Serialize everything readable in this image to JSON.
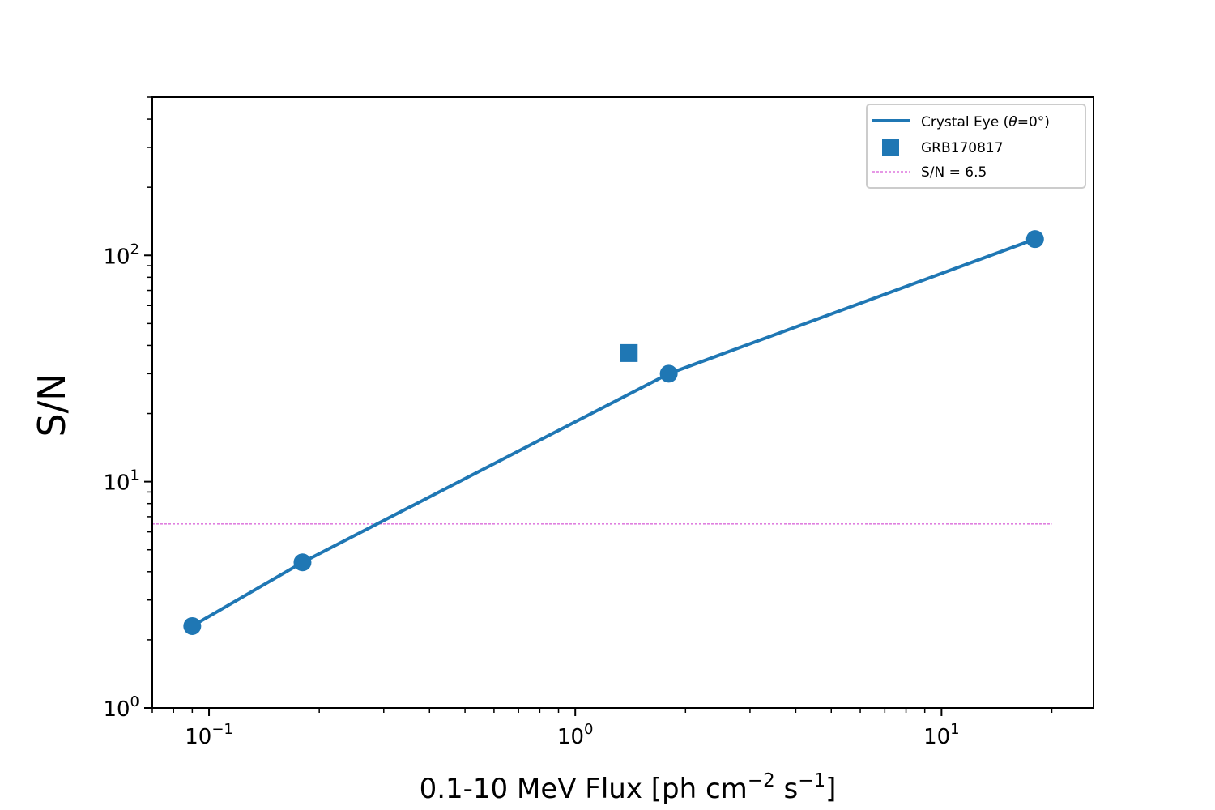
{
  "chart_data": {
    "type": "scatter",
    "x_scale": "log",
    "y_scale": "log",
    "xlabel": "0.1-10 MeV Flux [ph cm",
    "xlabel_exp1": "−2",
    "xlabel_mid": " s",
    "xlabel_exp2": "−1",
    "xlabel_end": "]",
    "ylabel": "S/N",
    "xlim": [
      0.07,
      26
    ],
    "ylim": [
      1,
      500
    ],
    "x_ticks": [
      {
        "value": 0.1,
        "base": "10",
        "exp": "−1"
      },
      {
        "value": 1,
        "base": "10",
        "exp": "0"
      },
      {
        "value": 10,
        "base": "10",
        "exp": "1"
      }
    ],
    "y_ticks": [
      {
        "value": 1,
        "base": "10",
        "exp": "0"
      },
      {
        "value": 10,
        "base": "10",
        "exp": "1"
      },
      {
        "value": 100,
        "base": "10",
        "exp": "2"
      }
    ],
    "series": [
      {
        "name": "Crystal Eye (θ=0°)",
        "style": "line-markers",
        "color": "#1f77b4",
        "x": [
          0.09,
          0.18,
          1.8,
          18
        ],
        "y": [
          2.3,
          4.4,
          30,
          118
        ]
      },
      {
        "name": "GRB170817",
        "style": "square",
        "color": "#1f77b4",
        "x": [
          1.4
        ],
        "y": [
          37
        ]
      },
      {
        "name": "S/N = 6.5",
        "style": "dashed-hline",
        "color": "#cc33cc",
        "y_value": 6.5,
        "x_range": [
          0.07,
          20
        ]
      }
    ],
    "legend": {
      "placement": "top-right",
      "items": [
        {
          "label_pre": "Crystal Eye (",
          "label_theta": "θ",
          "label_post": "=0°)"
        },
        {
          "label": "GRB170817"
        },
        {
          "label": "S/N = 6.5"
        }
      ]
    },
    "grid": false
  }
}
